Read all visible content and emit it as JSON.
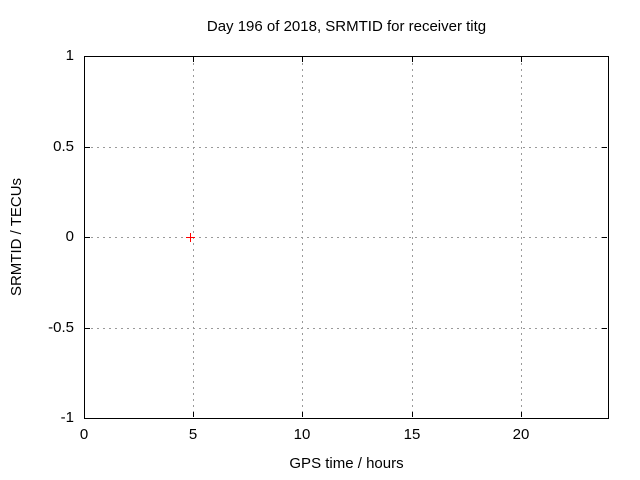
{
  "chart_data": {
    "type": "scatter",
    "title": "Day 196 of 2018, SRMTID for receiver titg",
    "xlabel": "GPS time / hours",
    "ylabel": "SRMTID / TECUs",
    "xlim": [
      0,
      24
    ],
    "ylim": [
      -1,
      1
    ],
    "x_ticks": [
      0,
      5,
      10,
      15,
      20
    ],
    "x_tick_labels": [
      "0",
      "5",
      "10",
      "15",
      "20"
    ],
    "y_ticks": [
      -1,
      -0.5,
      0,
      0.5,
      1
    ],
    "y_tick_labels": [
      "-1",
      "-0.5",
      "0",
      "0.5",
      "1"
    ],
    "grid": true,
    "legend": "none",
    "series": [
      {
        "name": "SRMTID",
        "marker": "plus",
        "color": "#ff0000",
        "points": [
          {
            "x": 4.86,
            "y": 0.0
          }
        ]
      }
    ]
  },
  "colors": {
    "background": "#ffffff",
    "text": "#000000",
    "border": "#000000",
    "grid": "#9a9a9a",
    "point": "#ff0000"
  }
}
